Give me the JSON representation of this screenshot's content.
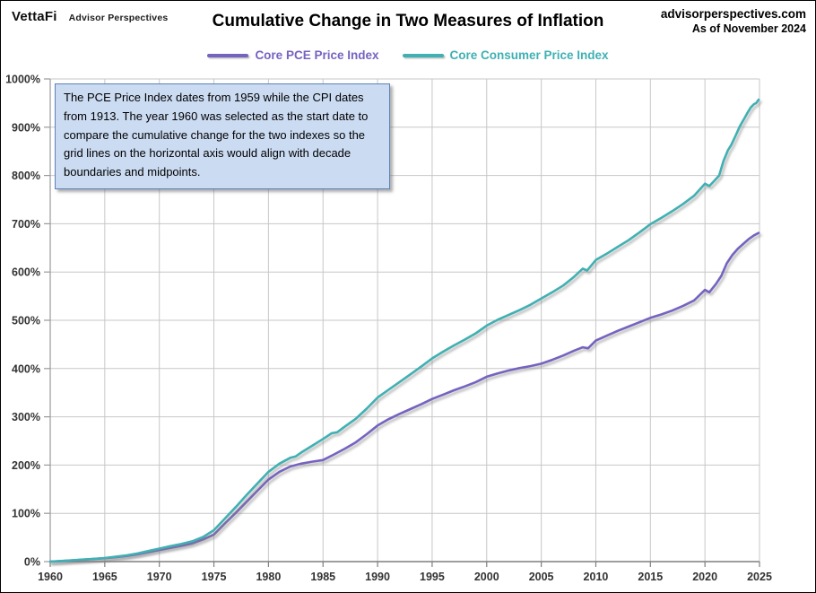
{
  "header": {
    "logo_primary": "VettaFi",
    "logo_secondary": "Advisor Perspectives",
    "title": "Cumulative Change in Two Measures of Inflation",
    "source": "advisorperspectives.com",
    "as_of": "As of November 2024"
  },
  "legend": [
    {
      "label": "Core PCE Price Index",
      "color": "#7663c0"
    },
    {
      "label": "Core Consumer Price Index",
      "color": "#3fb0b3"
    }
  ],
  "annotation": {
    "text": "The PCE Price Index dates from 1959 while the CPI dates from 1913.  The year 1960 was selected as the start date to compare the cumulative change for the two indexes so the grid lines on the horizontal  axis would align with decade boundaries and midpoints."
  },
  "colors": {
    "gridline": "#c7c7c7",
    "y_axis": "#9a9a9a",
    "x_axis": "#7f7f7f",
    "tick_label": "#333333"
  },
  "chart_data": {
    "type": "line",
    "title": "Cumulative Change in Two Measures of Inflation",
    "xlabel": "",
    "ylabel": "",
    "xlim": [
      1960,
      2025
    ],
    "ylim": [
      0,
      1000
    ],
    "grid": true,
    "legend_position": "top-center",
    "x_ticks": [
      1960,
      1965,
      1970,
      1975,
      1980,
      1985,
      1990,
      1995,
      2000,
      2005,
      2010,
      2015,
      2020,
      2025
    ],
    "x_tick_labels": [
      "1960",
      "1965",
      "1970",
      "1975",
      "1980",
      "1985",
      "1990",
      "1995",
      "2000",
      "2005",
      "2010",
      "2015",
      "2020",
      "2025"
    ],
    "y_ticks": [
      0,
      100,
      200,
      300,
      400,
      500,
      600,
      700,
      800,
      900,
      1000
    ],
    "y_tick_labels": [
      "0%",
      "100%",
      "200%",
      "300%",
      "400%",
      "500%",
      "600%",
      "700%",
      "800%",
      "900%",
      "1000%"
    ],
    "series": [
      {
        "name": "Core PCE Price Index",
        "color": "#7663c0",
        "points": [
          [
            1960,
            0
          ],
          [
            1961,
            1.2
          ],
          [
            1962,
            2.5
          ],
          [
            1963,
            3.9
          ],
          [
            1964,
            5.4
          ],
          [
            1965,
            7
          ],
          [
            1966,
            9.2
          ],
          [
            1967,
            11.8
          ],
          [
            1968,
            15.2
          ],
          [
            1969,
            19.5
          ],
          [
            1970,
            24
          ],
          [
            1971,
            28.5
          ],
          [
            1972,
            32.5
          ],
          [
            1973,
            37.5
          ],
          [
            1974,
            46
          ],
          [
            1975,
            56
          ],
          [
            1976,
            79
          ],
          [
            1977,
            101
          ],
          [
            1978,
            124
          ],
          [
            1979,
            147
          ],
          [
            1980,
            170
          ],
          [
            1981,
            186
          ],
          [
            1982,
            197
          ],
          [
            1983,
            203
          ],
          [
            1984,
            207
          ],
          [
            1985,
            210.5
          ],
          [
            1986,
            222
          ],
          [
            1987,
            234
          ],
          [
            1988,
            247
          ],
          [
            1989,
            264
          ],
          [
            1990,
            282
          ],
          [
            1991,
            295
          ],
          [
            1992,
            306
          ],
          [
            1993,
            316
          ],
          [
            1994,
            326
          ],
          [
            1995,
            337
          ],
          [
            1996,
            346
          ],
          [
            1997,
            355
          ],
          [
            1998,
            363
          ],
          [
            1999,
            372
          ],
          [
            2000,
            383
          ],
          [
            2001,
            390
          ],
          [
            2002,
            396
          ],
          [
            2003,
            401
          ],
          [
            2004,
            405
          ],
          [
            2005,
            410
          ],
          [
            2006,
            418
          ],
          [
            2007,
            427
          ],
          [
            2008,
            437
          ],
          [
            2008.8,
            444
          ],
          [
            2009.3,
            442
          ],
          [
            2010,
            458
          ],
          [
            2011,
            468
          ],
          [
            2012,
            478
          ],
          [
            2013,
            487
          ],
          [
            2014,
            496
          ],
          [
            2015,
            505
          ],
          [
            2016,
            512
          ],
          [
            2017,
            520
          ],
          [
            2018,
            530
          ],
          [
            2019,
            541
          ],
          [
            2020,
            563
          ],
          [
            2020.4,
            558
          ],
          [
            2021,
            575
          ],
          [
            2021.5,
            592
          ],
          [
            2022,
            618
          ],
          [
            2022.5,
            635
          ],
          [
            2023,
            648
          ],
          [
            2023.5,
            658
          ],
          [
            2024,
            668
          ],
          [
            2024.5,
            676
          ],
          [
            2024.92,
            681
          ]
        ]
      },
      {
        "name": "Core Consumer Price Index",
        "color": "#3fb0b3",
        "points": [
          [
            1960,
            0
          ],
          [
            1961,
            1.3
          ],
          [
            1962,
            2.7
          ],
          [
            1963,
            4.2
          ],
          [
            1964,
            5.8
          ],
          [
            1965,
            7.5
          ],
          [
            1966,
            10
          ],
          [
            1967,
            13
          ],
          [
            1968,
            17
          ],
          [
            1969,
            22
          ],
          [
            1970,
            27
          ],
          [
            1971,
            32
          ],
          [
            1972,
            36.5
          ],
          [
            1973,
            42
          ],
          [
            1974,
            51
          ],
          [
            1975,
            65
          ],
          [
            1976,
            89
          ],
          [
            1977,
            113
          ],
          [
            1978,
            138
          ],
          [
            1979,
            162
          ],
          [
            1980,
            186
          ],
          [
            1981,
            203
          ],
          [
            1982,
            215
          ],
          [
            1982.5,
            218
          ],
          [
            1983,
            226
          ],
          [
            1984,
            240
          ],
          [
            1985,
            254
          ],
          [
            1985.8,
            266
          ],
          [
            1986.3,
            268
          ],
          [
            1987,
            280
          ],
          [
            1988,
            296
          ],
          [
            1989,
            317
          ],
          [
            1990,
            340
          ],
          [
            1991,
            356
          ],
          [
            1992,
            372
          ],
          [
            1993,
            388
          ],
          [
            1994,
            404
          ],
          [
            1995,
            421
          ],
          [
            1996,
            435
          ],
          [
            1997,
            448
          ],
          [
            1998,
            460
          ],
          [
            1999,
            473
          ],
          [
            2000,
            489
          ],
          [
            2001,
            501
          ],
          [
            2002,
            511
          ],
          [
            2003,
            521
          ],
          [
            2004,
            532
          ],
          [
            2005,
            545
          ],
          [
            2006,
            558
          ],
          [
            2007,
            572
          ],
          [
            2008,
            590
          ],
          [
            2008.8,
            607
          ],
          [
            2009.2,
            603
          ],
          [
            2010,
            625
          ],
          [
            2011,
            638
          ],
          [
            2012,
            652
          ],
          [
            2013,
            666
          ],
          [
            2014,
            682
          ],
          [
            2015,
            699
          ],
          [
            2016,
            712
          ],
          [
            2017,
            726
          ],
          [
            2018,
            741
          ],
          [
            2019,
            758
          ],
          [
            2020,
            783
          ],
          [
            2020.4,
            778
          ],
          [
            2020.9,
            790
          ],
          [
            2021.3,
            800
          ],
          [
            2021.7,
            830
          ],
          [
            2022.1,
            852
          ],
          [
            2022.4,
            863
          ],
          [
            2022.8,
            882
          ],
          [
            2023.2,
            902
          ],
          [
            2023.6,
            918
          ],
          [
            2023.9,
            930
          ],
          [
            2024.2,
            941
          ],
          [
            2024.5,
            948
          ],
          [
            2024.7,
            950
          ],
          [
            2024.92,
            957
          ]
        ]
      }
    ]
  }
}
